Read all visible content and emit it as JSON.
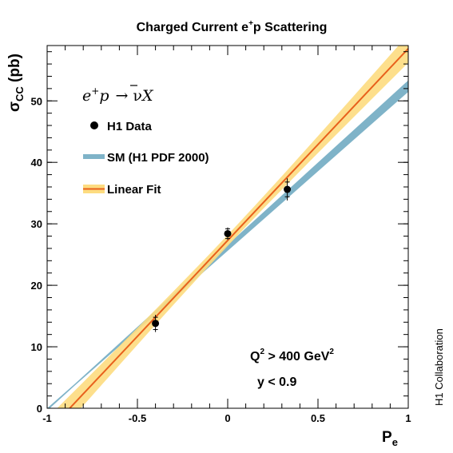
{
  "chart_data": {
    "type": "scatter",
    "title": "Charged Current e",
    "title_sup": "+",
    "title_suffix": "p Scattering",
    "xlabel": "P",
    "xlabel_sub": "e",
    "ylabel": "σ",
    "ylabel_sub": "CC",
    "ylabel_suffix": " (pb)",
    "xlim": [
      -1,
      1
    ],
    "ylim": [
      0,
      59
    ],
    "x_ticks": [
      -1,
      -0.5,
      0,
      0.5,
      1
    ],
    "x_tick_labels": [
      "-1",
      "-0.5",
      "0",
      "0.5",
      "1"
    ],
    "y_ticks": [
      0,
      10,
      20,
      30,
      40,
      50
    ],
    "y_tick_labels": [
      "0",
      "10",
      "20",
      "30",
      "40",
      "50"
    ],
    "grid": false,
    "legend_position": "top-left",
    "process": {
      "e": "e",
      "e_sup": "+",
      "p": "p",
      "arrow": "→",
      "nu": "ν",
      "X": "X"
    },
    "series": [
      {
        "name": "H1 Data",
        "kind": "points",
        "color": "#000000",
        "x": [
          -0.4,
          0.0,
          0.33
        ],
        "y": [
          13.8,
          28.4,
          35.6
        ],
        "stat_err": [
          1.0,
          0.8,
          1.2
        ],
        "tot_err": [
          1.4,
          1.0,
          1.8
        ]
      },
      {
        "name": "SM (H1 PDF 2000)",
        "kind": "band",
        "color": "#7fb3c8",
        "x": [
          -1,
          1
        ],
        "lower": [
          0.0,
          51.6
        ],
        "upper": [
          0.0,
          53.2
        ]
      },
      {
        "name": "Linear Fit",
        "kind": "line-band",
        "line_color": "#e8601c",
        "band_color": "#fddc80",
        "x": [
          -1,
          1
        ],
        "y": [
          -3.9,
          58.5
        ],
        "slope_err": 2.1,
        "intercept": 27.3,
        "intercept_err": 0.9
      }
    ],
    "annotations": {
      "q2_prefix": "Q",
      "q2_sup": "2",
      "q2_mid": " > 400 GeV",
      "q2_unit_sup": "2",
      "y_cut": "y < 0.9",
      "collaboration": "H1 Collaboration"
    }
  }
}
